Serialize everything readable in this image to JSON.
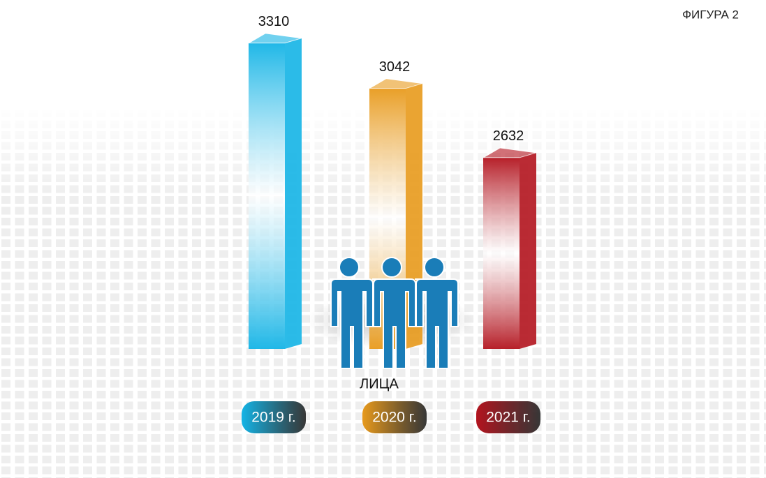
{
  "chart_data": {
    "type": "bar3d",
    "title": "ФИГУРА 2",
    "subtitle": "ЛИЦА",
    "categories": [
      "2019 г.",
      "2020 г.",
      "2021 г."
    ],
    "values": [
      3310,
      3042,
      2632
    ],
    "colors": [
      "#14b4e6",
      "#e89a1c",
      "#b3141e"
    ],
    "ylim": [
      1500,
      3400
    ]
  }
}
